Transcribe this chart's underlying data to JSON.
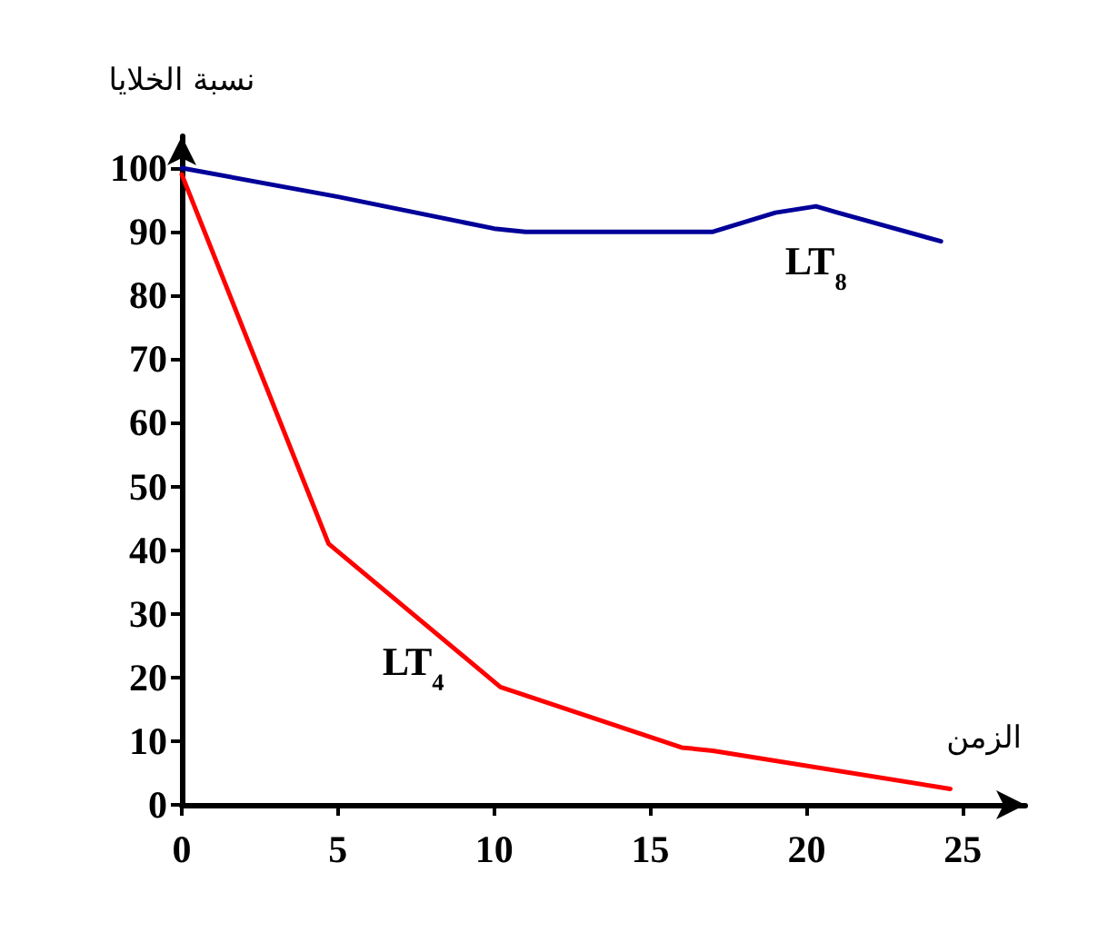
{
  "chart_data": {
    "type": "line",
    "xlabel": "الزمن",
    "ylabel": "نسبة الخلايا",
    "series": [
      {
        "name": "LT₈",
        "color": "#000099",
        "x": [
          0,
          5,
          10,
          11,
          17,
          19,
          20.3,
          21,
          24.3
        ],
        "values": [
          100,
          95.5,
          90.5,
          90,
          90,
          93,
          94,
          93,
          88.5
        ]
      },
      {
        "name": "LT₄",
        "color": "#ff0000",
        "x": [
          0,
          4.7,
          10.2,
          16,
          17,
          24.6
        ],
        "values": [
          99,
          41,
          18.5,
          9,
          8.5,
          2.5
        ]
      }
    ],
    "xlim": [
      0,
      27
    ],
    "xticks": [
      0,
      5,
      10,
      15,
      20,
      25
    ],
    "ylim": [
      0,
      105
    ],
    "yticks": [
      0,
      10,
      20,
      30,
      40,
      50,
      60,
      70,
      80,
      90,
      100
    ],
    "grid": false,
    "legend": false,
    "marker": "none",
    "line_style": "solid"
  }
}
